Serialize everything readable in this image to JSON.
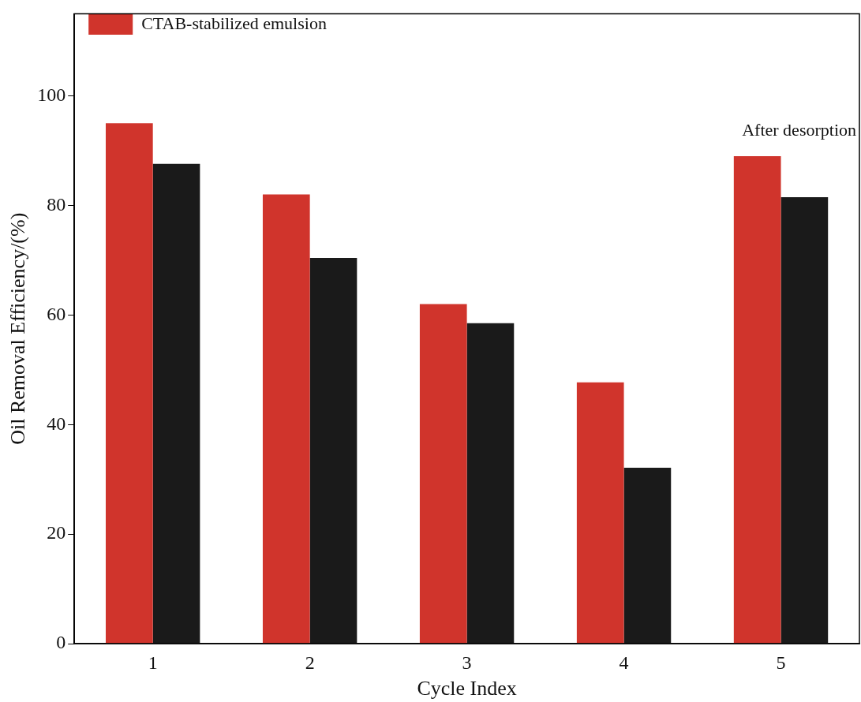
{
  "chart_data": {
    "type": "bar",
    "xlabel": "Cycle Index",
    "ylabel": "Oil Removal Efficiency/(%)",
    "categories": [
      "1",
      "2",
      "3",
      "4",
      "5"
    ],
    "series": [
      {
        "name": "CTAB-stabilized emulsion",
        "color": "#d0342c",
        "values": [
          95,
          82,
          62,
          47.7,
          89
        ]
      },
      {
        "color": "#1a1a1a",
        "values": [
          87.6,
          70.4,
          58.5,
          32.1,
          81.5
        ]
      }
    ],
    "ylim": [
      0,
      115
    ],
    "yticks": [
      0,
      20,
      40,
      60,
      80,
      100
    ],
    "grid": false,
    "legend": "top left",
    "annotations": [
      "After desorption"
    ]
  }
}
